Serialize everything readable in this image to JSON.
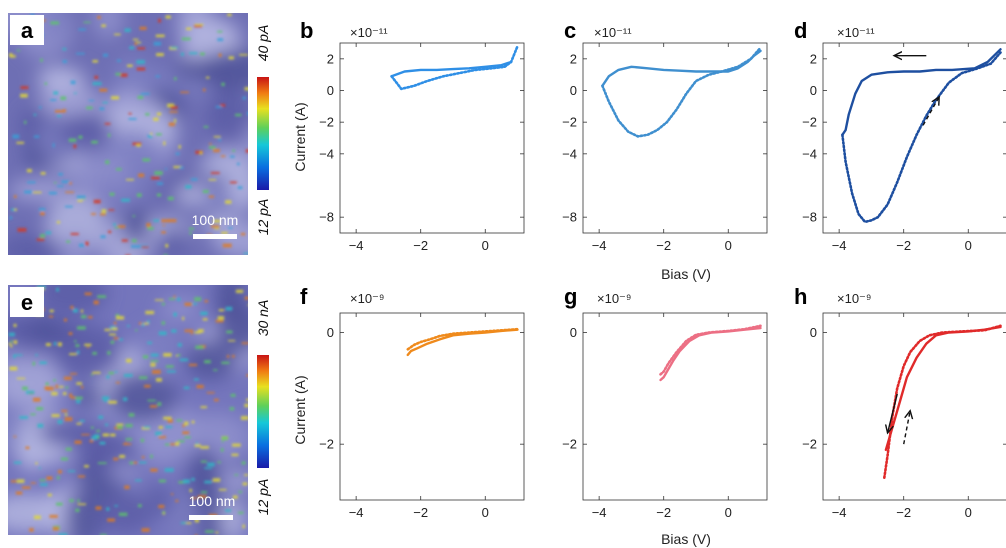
{
  "figure": {
    "xlabel_bias": "Bias (V)",
    "colors": {
      "b": "#2f8fe6",
      "c": "#3f8fcf",
      "d": "#1e4fa0",
      "f": "#ef8a1c",
      "g": "#ec6f84",
      "h": "#e02a2a"
    }
  },
  "maps": [
    {
      "letter": "a",
      "scale_bar": "100 nm",
      "cb_max": "40 pA",
      "cb_min": "12 pA",
      "hotspot_level": 0.25
    },
    {
      "letter": "e",
      "scale_bar": "100 nm",
      "cb_max": "30 nA",
      "cb_min": "12 pA",
      "hotspot_level": 0.35
    }
  ],
  "chart_data": [
    {
      "panel": "b",
      "type": "line",
      "exponent_label": "×10⁻¹¹",
      "xlabel": "",
      "ylabel": "Current (A)",
      "xlim": [
        -4.5,
        1.2
      ],
      "ylim": [
        -9,
        3
      ],
      "xticks": [
        -4,
        -2,
        0
      ],
      "yticks": [
        2,
        0,
        -2,
        -4,
        -8
      ],
      "series": [
        {
          "style": "solid",
          "x": [
            0.8,
            0.5,
            0.0,
            -0.5,
            -1.0,
            -1.5,
            -2.0,
            -2.5,
            -2.9
          ],
          "y": [
            1.8,
            1.6,
            1.5,
            1.4,
            1.35,
            1.3,
            1.3,
            1.2,
            0.9
          ]
        },
        {
          "style": "dotted",
          "x": [
            -2.9,
            -2.6,
            -2.2,
            -1.8,
            -1.3,
            -0.8,
            -0.3,
            0.2,
            0.6,
            0.8,
            0.9,
            1.0
          ],
          "y": [
            0.9,
            0.1,
            0.3,
            0.6,
            0.9,
            1.1,
            1.3,
            1.4,
            1.5,
            1.8,
            2.3,
            2.8
          ]
        }
      ]
    },
    {
      "panel": "c",
      "type": "line",
      "exponent_label": "×10⁻¹¹",
      "xlabel": "",
      "ylabel": "",
      "xlim": [
        -4.5,
        1.2
      ],
      "ylim": [
        -9,
        3
      ],
      "xticks": [
        -4,
        -2,
        0
      ],
      "yticks": [
        2,
        0,
        -2,
        -4,
        -8
      ],
      "series": [
        {
          "style": "solid",
          "x": [
            1.0,
            0.8,
            0.6,
            0.3,
            0.0,
            -0.5,
            -1.0,
            -1.5,
            -2.0,
            -2.5,
            -3.0,
            -3.4,
            -3.7,
            -3.9
          ],
          "y": [
            2.5,
            2.2,
            1.8,
            1.4,
            1.2,
            1.2,
            1.2,
            1.25,
            1.3,
            1.4,
            1.5,
            1.3,
            0.9,
            0.3
          ]
        },
        {
          "style": "dotted",
          "x": [
            -3.9,
            -3.7,
            -3.4,
            -3.1,
            -2.8,
            -2.5,
            -2.2,
            -1.9,
            -1.6,
            -1.3,
            -1.0,
            -0.6,
            -0.2,
            0.3,
            0.7,
            1.0
          ],
          "y": [
            0.3,
            -0.7,
            -1.9,
            -2.6,
            -2.9,
            -2.8,
            -2.5,
            -2.0,
            -1.2,
            -0.2,
            0.6,
            1.0,
            1.2,
            1.5,
            2.0,
            2.7
          ]
        }
      ]
    },
    {
      "panel": "d",
      "type": "line",
      "exponent_label": "×10⁻¹¹",
      "xlabel": "",
      "ylabel": "",
      "xlim": [
        -4.5,
        1.2
      ],
      "ylim": [
        -9,
        3
      ],
      "xticks": [
        -4,
        -2,
        0
      ],
      "yticks": [
        2,
        0,
        -2,
        -4,
        -8
      ],
      "series": [
        {
          "style": "solid",
          "x": [
            1.0,
            0.6,
            0.2,
            -0.5,
            -1.0,
            -1.5,
            -2.0,
            -2.5,
            -3.0,
            -3.3,
            -3.5,
            -3.7,
            -3.8,
            -3.9
          ],
          "y": [
            2.6,
            1.8,
            1.4,
            1.3,
            1.3,
            1.2,
            1.2,
            1.15,
            1.0,
            0.6,
            -0.2,
            -1.5,
            -2.5,
            -2.8
          ]
        },
        {
          "style": "dotted",
          "x": [
            -3.9,
            -3.8,
            -3.6,
            -3.4,
            -3.2,
            -3.0,
            -2.8,
            -2.5,
            -2.2,
            -1.9,
            -1.6,
            -1.3,
            -1.0,
            -0.6,
            -0.2,
            0.3,
            0.7,
            1.0
          ],
          "y": [
            -2.8,
            -4.5,
            -6.5,
            -7.8,
            -8.3,
            -8.2,
            -8.0,
            -7.2,
            -5.8,
            -4.2,
            -2.8,
            -1.6,
            -0.6,
            0.5,
            1.1,
            1.4,
            1.7,
            2.4
          ]
        }
      ],
      "arrows": [
        {
          "style": "solid",
          "from": [
            -1.3,
            2.2
          ],
          "to": [
            -2.3,
            2.2
          ]
        },
        {
          "style": "dashed",
          "from": [
            -1.4,
            -2.2
          ],
          "to": [
            -0.9,
            -0.4
          ]
        }
      ]
    },
    {
      "panel": "f",
      "type": "line",
      "exponent_label": "×10⁻⁹",
      "xlabel": "",
      "ylabel": "Current (A)",
      "xlim": [
        -4.5,
        1.2
      ],
      "ylim": [
        -3,
        0.35
      ],
      "xticks": [
        -4,
        -2,
        0
      ],
      "yticks": [
        0,
        -2
      ],
      "series": [
        {
          "style": "solid",
          "x": [
            1.0,
            0.5,
            0.0,
            -0.5,
            -1.0,
            -1.4,
            -1.8,
            -2.1,
            -2.3,
            -2.4
          ],
          "y": [
            0.05,
            0.03,
            0.0,
            -0.02,
            -0.05,
            -0.12,
            -0.2,
            -0.28,
            -0.33,
            -0.4
          ]
        },
        {
          "style": "dotted",
          "x": [
            -2.4,
            -2.2,
            -2.0,
            -1.7,
            -1.4,
            -1.0,
            -0.5,
            0.0,
            0.5,
            1.0
          ],
          "y": [
            -0.3,
            -0.22,
            -0.17,
            -0.12,
            -0.06,
            -0.02,
            0.0,
            0.02,
            0.04,
            0.06
          ]
        }
      ]
    },
    {
      "panel": "g",
      "type": "line",
      "exponent_label": "×10⁻⁹",
      "xlabel": "",
      "ylabel": "",
      "xlim": [
        -4.5,
        1.2
      ],
      "ylim": [
        -3,
        0.35
      ],
      "xticks": [
        -4,
        -2,
        0
      ],
      "yticks": [
        0,
        -2
      ],
      "series": [
        {
          "style": "solid",
          "x": [
            1.0,
            0.5,
            0.0,
            -0.5,
            -0.9,
            -1.2,
            -1.5,
            -1.7,
            -1.9,
            -2.0,
            -2.1
          ],
          "y": [
            0.08,
            0.05,
            0.02,
            0.0,
            -0.05,
            -0.15,
            -0.33,
            -0.5,
            -0.7,
            -0.8,
            -0.85
          ]
        },
        {
          "style": "dotted",
          "x": [
            -2.1,
            -2.0,
            -1.85,
            -1.6,
            -1.3,
            -1.0,
            -0.6,
            0.0,
            0.5,
            1.0
          ],
          "y": [
            -0.75,
            -0.7,
            -0.55,
            -0.35,
            -0.15,
            -0.04,
            0.0,
            0.03,
            0.06,
            0.12
          ]
        }
      ]
    },
    {
      "panel": "h",
      "type": "line",
      "exponent_label": "×10⁻⁹",
      "xlabel": "",
      "ylabel": "",
      "xlim": [
        -4.5,
        1.2
      ],
      "ylim": [
        -3,
        0.35
      ],
      "xticks": [
        -4,
        -2,
        0
      ],
      "yticks": [
        0,
        -2
      ],
      "series": [
        {
          "style": "solid",
          "x": [
            1.0,
            0.5,
            0.0,
            -0.6,
            -1.0,
            -1.3,
            -1.6,
            -1.9,
            -2.1,
            -2.3,
            -2.45,
            -2.55
          ],
          "y": [
            0.1,
            0.05,
            0.02,
            0.0,
            -0.05,
            -0.2,
            -0.45,
            -0.8,
            -1.2,
            -1.6,
            -1.9,
            -2.1
          ]
        },
        {
          "style": "dotted",
          "x": [
            -2.6,
            -2.5,
            -2.35,
            -2.2,
            -2.0,
            -1.8,
            -1.5,
            -1.2,
            -0.8,
            -0.2,
            0.5,
            1.0
          ],
          "y": [
            -2.6,
            -2.2,
            -1.5,
            -1.0,
            -0.6,
            -0.35,
            -0.15,
            -0.05,
            0.0,
            0.02,
            0.04,
            0.12
          ]
        }
      ],
      "arrows": [
        {
          "style": "solid",
          "from": [
            -2.2,
            -1.1
          ],
          "to": [
            -2.5,
            -1.8
          ]
        },
        {
          "style": "dashed",
          "from": [
            -2.0,
            -2.0
          ],
          "to": [
            -1.8,
            -1.4
          ]
        }
      ]
    }
  ]
}
